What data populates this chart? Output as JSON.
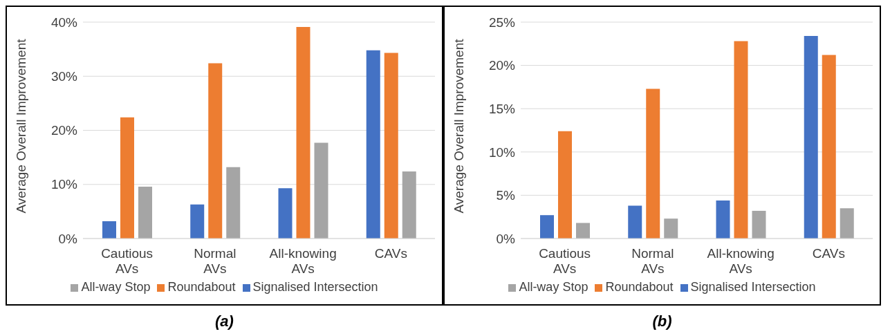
{
  "chart_data": [
    {
      "type": "bar",
      "title": "(a)",
      "ylabel": "Average  Overall Improvement",
      "categories": [
        "Cautious AVs",
        "Normal AVs",
        "All-knowing AVs",
        "CAVs"
      ],
      "series": [
        {
          "name": "Signalised Intersection",
          "color": "#4472c4",
          "values": [
            3.2,
            6.3,
            9.3,
            34.8
          ]
        },
        {
          "name": "Roundabout",
          "color": "#ed7d31",
          "values": [
            22.4,
            32.4,
            39.1,
            34.3
          ]
        },
        {
          "name": "All-way Stop",
          "color": "#a5a5a5",
          "values": [
            9.6,
            13.2,
            17.7,
            12.4
          ]
        }
      ],
      "ylim": [
        0,
        40
      ],
      "yticks": [
        {
          "value": 0,
          "label": "0%"
        },
        {
          "value": 10,
          "label": "10%"
        },
        {
          "value": 20,
          "label": "20%"
        },
        {
          "value": 30,
          "label": "30%"
        },
        {
          "value": 40,
          "label": "40%"
        }
      ],
      "grid": "y",
      "legend": "bottom"
    },
    {
      "type": "bar",
      "title": "(b)",
      "ylabel": "Average  Overall Improvement",
      "categories": [
        "Cautious AVs",
        "Normal AVs",
        "All-knowing AVs",
        "CAVs"
      ],
      "series": [
        {
          "name": "Signalised Intersection",
          "color": "#4472c4",
          "values": [
            2.7,
            3.8,
            4.4,
            23.4
          ]
        },
        {
          "name": "Roundabout",
          "color": "#ed7d31",
          "values": [
            12.4,
            17.3,
            22.8,
            21.2
          ]
        },
        {
          "name": "All-way Stop",
          "color": "#a5a5a5",
          "values": [
            1.8,
            2.3,
            3.2,
            3.5
          ]
        }
      ],
      "ylim": [
        0,
        25
      ],
      "yticks": [
        {
          "value": 0,
          "label": "0%"
        },
        {
          "value": 5,
          "label": "5%"
        },
        {
          "value": 10,
          "label": "10%"
        },
        {
          "value": 15,
          "label": "15%"
        },
        {
          "value": 20,
          "label": "20%"
        },
        {
          "value": 25,
          "label": "25%"
        }
      ],
      "grid": "y",
      "legend": "bottom"
    }
  ]
}
